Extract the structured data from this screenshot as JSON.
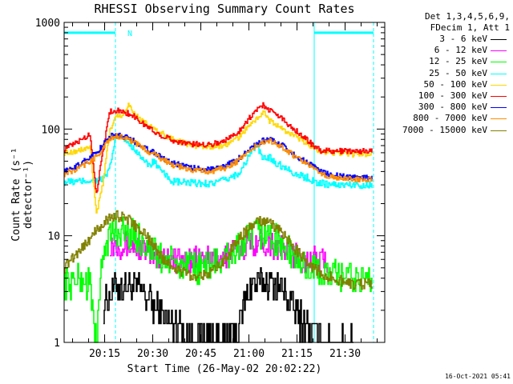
{
  "chart_data": {
    "type": "line",
    "title": "RHESSI Observing Summary Count Rates",
    "xlabel": "Start Time (26-May-02 20:02:22)",
    "ylabel": "Count Rate (s⁻¹ detector⁻¹)",
    "x_ticks": [
      "20:15",
      "20:30",
      "20:45",
      "21:00",
      "21:15",
      "21:30"
    ],
    "y_ticks": [
      "1",
      "10",
      "100",
      "1000"
    ],
    "y_scale": "log",
    "ylim": [
      1,
      1000
    ],
    "xlim_minutes": [
      0,
      100
    ],
    "grid": false,
    "legend_position": "right",
    "legend_header": [
      "Det 1,3,4,5,6,9,",
      "FDecim 1, Att 1"
    ],
    "flags": {
      "marker_label": "N",
      "bar_value": 800,
      "bar_segments_minutes": [
        [
          0,
          16
        ],
        [
          78,
          96.5
        ]
      ],
      "solid_lines_minutes": [
        0,
        78
      ],
      "dashed_lines_minutes": [
        16,
        96.5
      ]
    },
    "series": [
      {
        "name": "3 - 6 keV",
        "color": "#000000",
        "minutes": [
          0,
          8,
          10,
          12,
          16,
          20,
          24,
          28,
          30,
          34,
          40,
          50,
          54,
          56,
          58,
          60,
          64,
          68,
          72,
          76,
          78,
          80,
          84,
          90,
          96
        ],
        "values": [
          null,
          null,
          null,
          2.2,
          3.4,
          3.4,
          3.0,
          2.2,
          1.8,
          1.5,
          1.2,
          1.1,
          1.3,
          2.2,
          3.4,
          3.6,
          3.6,
          3.2,
          2.0,
          1.4,
          1.2,
          1.0,
          1.0,
          1.0,
          null
        ]
      },
      {
        "name": "6 - 12 keV",
        "color": "#ff00ff",
        "minutes": [
          0,
          8,
          10,
          12,
          14,
          16,
          18,
          20,
          22,
          24,
          26,
          28,
          30,
          34,
          38,
          42,
          46,
          50,
          54,
          58,
          60,
          62,
          64,
          66,
          68,
          70,
          72,
          74,
          76,
          78,
          82
        ],
        "values": [
          null,
          null,
          null,
          null,
          8.5,
          8.5,
          8.3,
          8.0,
          7.8,
          7.5,
          7.0,
          6.5,
          6.3,
          6.0,
          5.8,
          5.8,
          6.0,
          6.5,
          7.5,
          8.5,
          8.8,
          8.8,
          8.5,
          8.0,
          7.5,
          7.0,
          6.5,
          6.0,
          5.8,
          5.8,
          5.6
        ]
      },
      {
        "name": "12 - 25 keV",
        "color": "#00ff00",
        "minutes": [
          0,
          4,
          8,
          10,
          12,
          14,
          16,
          18,
          20,
          22,
          24,
          26,
          28,
          30,
          34,
          40,
          46,
          50,
          54,
          58,
          60,
          62,
          64,
          66,
          68,
          70,
          72,
          74,
          76,
          80,
          84,
          90,
          96
        ],
        "values": [
          3.5,
          4.0,
          3.5,
          1.0,
          7.0,
          10.0,
          11.0,
          11.0,
          10.5,
          10.0,
          9.0,
          8.0,
          7.0,
          6.2,
          5.5,
          5.0,
          5.2,
          6.0,
          7.5,
          9.5,
          10.5,
          10.5,
          10.0,
          9.0,
          8.0,
          7.0,
          6.2,
          5.5,
          5.0,
          4.5,
          4.2,
          4.0,
          3.8
        ]
      },
      {
        "name": "25 - 50 keV",
        "color": "#00ffff",
        "minutes": [
          0,
          4,
          8,
          10,
          12,
          14,
          16,
          18,
          20,
          22,
          24,
          26,
          28,
          30,
          34,
          40,
          46,
          50,
          54,
          56,
          58,
          60,
          62,
          64,
          66,
          68,
          70,
          72,
          74,
          76,
          78,
          80,
          84,
          90,
          96
        ],
        "values": [
          32,
          32,
          33,
          33,
          34,
          40,
          85,
          82,
          75,
          65,
          55,
          45,
          50,
          40,
          32,
          31,
          31,
          33,
          38,
          45,
          60,
          70,
          52,
          55,
          48,
          45,
          42,
          38,
          36,
          35,
          32,
          31,
          30,
          30,
          30
        ]
      },
      {
        "name": "50 - 100 keV",
        "color": "#ffd700",
        "minutes": [
          0,
          4,
          8,
          10,
          12,
          14,
          16,
          18,
          20,
          22,
          24,
          26,
          28,
          30,
          34,
          40,
          46,
          50,
          54,
          56,
          58,
          60,
          62,
          64,
          66,
          68,
          70,
          72,
          74,
          76,
          78,
          80,
          84,
          90,
          96
        ],
        "values": [
          60,
          62,
          68,
          16,
          30,
          90,
          135,
          135,
          170,
          140,
          120,
          110,
          100,
          92,
          80,
          70,
          68,
          70,
          82,
          95,
          110,
          125,
          145,
          120,
          110,
          100,
          92,
          85,
          78,
          72,
          66,
          62,
          60,
          58,
          58
        ]
      },
      {
        "name": "100 - 300 keV",
        "color": "#ff0000",
        "minutes": [
          0,
          4,
          8,
          10,
          12,
          14,
          16,
          18,
          20,
          22,
          24,
          26,
          28,
          30,
          34,
          40,
          46,
          50,
          54,
          56,
          58,
          60,
          62,
          64,
          66,
          68,
          70,
          72,
          74,
          76,
          78,
          80,
          84,
          90,
          96
        ],
        "values": [
          65,
          75,
          90,
          25,
          60,
          145,
          150,
          145,
          140,
          130,
          115,
          105,
          95,
          88,
          78,
          72,
          72,
          78,
          92,
          110,
          130,
          150,
          170,
          150,
          140,
          125,
          110,
          98,
          88,
          78,
          68,
          63,
          62,
          62,
          62
        ]
      },
      {
        "name": "300 - 800 keV",
        "color": "#0000ff",
        "minutes": [
          0,
          4,
          8,
          10,
          12,
          14,
          16,
          18,
          20,
          22,
          24,
          26,
          28,
          30,
          34,
          40,
          46,
          50,
          54,
          56,
          58,
          60,
          62,
          64,
          66,
          68,
          70,
          72,
          74,
          76,
          78,
          80,
          84,
          90,
          96
        ],
        "values": [
          40,
          45,
          55,
          60,
          70,
          85,
          88,
          86,
          82,
          76,
          70,
          65,
          60,
          55,
          48,
          43,
          42,
          45,
          52,
          58,
          65,
          72,
          78,
          80,
          75,
          70,
          63,
          57,
          52,
          48,
          44,
          40,
          37,
          35,
          35
        ]
      },
      {
        "name": "800 - 7000 keV",
        "color": "#ff8c00",
        "minutes": [
          0,
          4,
          8,
          10,
          12,
          14,
          16,
          18,
          20,
          22,
          24,
          26,
          28,
          30,
          34,
          40,
          46,
          50,
          54,
          56,
          58,
          60,
          62,
          64,
          66,
          68,
          70,
          72,
          74,
          76,
          78,
          80,
          84,
          90,
          96
        ],
        "values": [
          38,
          42,
          50,
          55,
          65,
          80,
          85,
          85,
          80,
          74,
          68,
          62,
          58,
          53,
          46,
          41,
          40,
          43,
          50,
          56,
          63,
          70,
          76,
          78,
          73,
          68,
          61,
          55,
          50,
          46,
          42,
          38,
          35,
          34,
          34
        ]
      },
      {
        "name": "7000 - 15000 keV",
        "color": "#808000",
        "minutes": [
          0,
          2,
          4,
          6,
          8,
          10,
          12,
          14,
          16,
          18,
          20,
          22,
          24,
          26,
          28,
          30,
          34,
          40,
          46,
          50,
          52,
          54,
          56,
          58,
          60,
          62,
          64,
          66,
          68,
          70,
          72,
          74,
          76,
          78,
          80,
          84,
          90,
          96
        ],
        "values": [
          5.0,
          6.0,
          7.0,
          8.0,
          9.5,
          11.0,
          13.0,
          14.5,
          15.5,
          15.0,
          14.0,
          12.5,
          11.0,
          9.5,
          8.0,
          6.5,
          5.0,
          4.2,
          4.5,
          6.0,
          7.5,
          9.0,
          10.5,
          12.0,
          13.5,
          13.5,
          13.0,
          12.0,
          10.5,
          9.0,
          7.5,
          6.5,
          5.5,
          5.0,
          4.5,
          4.0,
          3.5,
          3.5
        ]
      }
    ]
  },
  "timestamp": "16-Oct-2021 05:41"
}
